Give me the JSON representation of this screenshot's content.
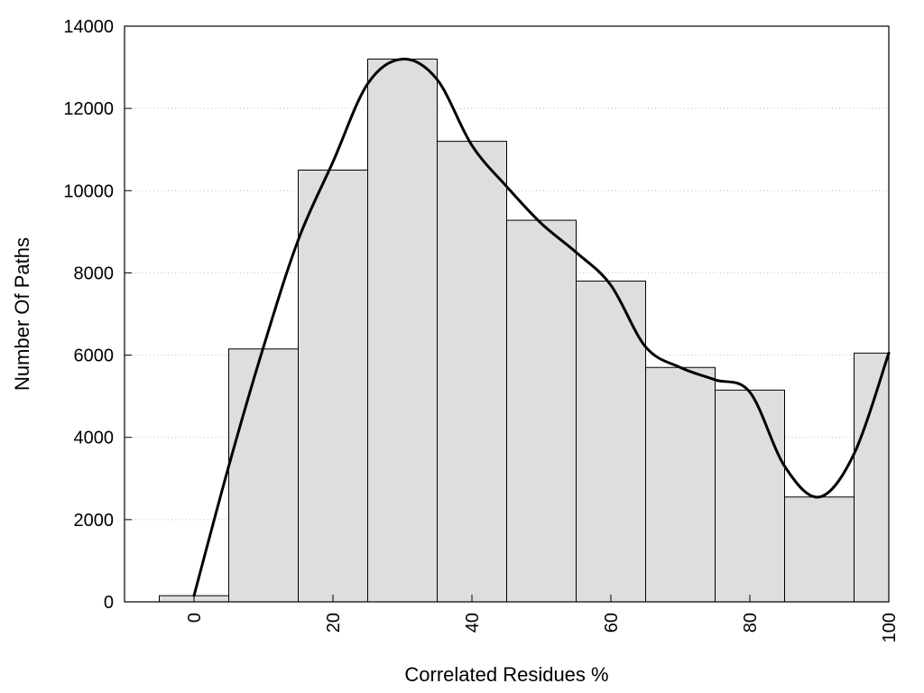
{
  "chart_data": {
    "type": "bar",
    "title": "",
    "xlabel": "Correlated Residues %",
    "ylabel": "Number Of Paths",
    "xlim": [
      -10,
      100
    ],
    "ylim": [
      0,
      14000
    ],
    "x": [
      0,
      10,
      20,
      30,
      40,
      50,
      60,
      70,
      80,
      90,
      100
    ],
    "bin_width": 10,
    "values": [
      150,
      6150,
      10500,
      13200,
      11200,
      9280,
      7800,
      5700,
      5150,
      2550,
      6050
    ],
    "x_ticks": [
      0,
      20,
      40,
      60,
      80,
      100
    ],
    "y_ticks": [
      0,
      2000,
      4000,
      6000,
      8000,
      10000,
      12000,
      14000
    ],
    "grid": "horizontal dotted",
    "bar_color": "#dedede",
    "bar_edge_color": "#000000",
    "series": [
      {
        "type": "line",
        "x": [
          0,
          5,
          10,
          15,
          20,
          25,
          30,
          35,
          40,
          45,
          50,
          55,
          60,
          65,
          70,
          75,
          80,
          85,
          90,
          95,
          100
        ],
        "values": [
          150,
          3300,
          6200,
          8800,
          10700,
          12600,
          13200,
          12700,
          11100,
          10100,
          9200,
          8500,
          7700,
          6200,
          5700,
          5400,
          5100,
          3300,
          2550,
          3600,
          6050
        ],
        "color": "#000000"
      }
    ]
  }
}
